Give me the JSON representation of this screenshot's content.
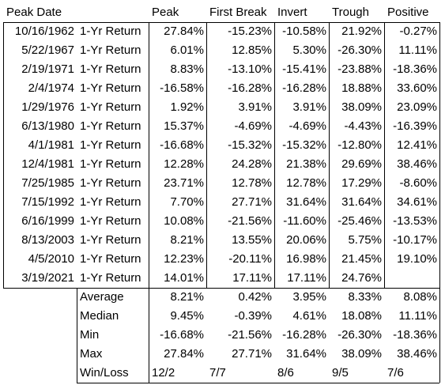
{
  "header": {
    "peak_date": "Peak Date",
    "peak": "Peak",
    "first_break": "First Break",
    "invert": "Invert",
    "trough": "Trough",
    "positive": "Positive"
  },
  "rows": [
    {
      "date": "10/16/1962",
      "label": "1-Yr Return",
      "peak": "27.84%",
      "first_break": "-15.23%",
      "invert": "-10.58%",
      "trough": "21.92%",
      "positive": "-0.27%"
    },
    {
      "date": "5/22/1967",
      "label": "1-Yr Return",
      "peak": "6.01%",
      "first_break": "12.85%",
      "invert": "5.30%",
      "trough": "-26.30%",
      "positive": "11.11%"
    },
    {
      "date": "2/19/1971",
      "label": "1-Yr Return",
      "peak": "8.83%",
      "first_break": "-13.10%",
      "invert": "-15.41%",
      "trough": "-23.88%",
      "positive": "-18.36%"
    },
    {
      "date": "2/4/1974",
      "label": "1-Yr Return",
      "peak": "-16.58%",
      "first_break": "-16.28%",
      "invert": "-16.28%",
      "trough": "18.88%",
      "positive": "33.60%"
    },
    {
      "date": "1/29/1976",
      "label": "1-Yr Return",
      "peak": "1.92%",
      "first_break": "3.91%",
      "invert": "3.91%",
      "trough": "38.09%",
      "positive": "23.09%"
    },
    {
      "date": "6/13/1980",
      "label": "1-Yr Return",
      "peak": "15.37%",
      "first_break": "-4.69%",
      "invert": "-4.69%",
      "trough": "-4.43%",
      "positive": "-16.39%"
    },
    {
      "date": "4/1/1981",
      "label": "1-Yr Return",
      "peak": "-16.68%",
      "first_break": "-15.32%",
      "invert": "-15.32%",
      "trough": "-12.80%",
      "positive": "12.41%"
    },
    {
      "date": "12/4/1981",
      "label": "1-Yr Return",
      "peak": "12.28%",
      "first_break": "24.28%",
      "invert": "21.38%",
      "trough": "29.69%",
      "positive": "38.46%"
    },
    {
      "date": "7/25/1985",
      "label": "1-Yr Return",
      "peak": "23.71%",
      "first_break": "12.78%",
      "invert": "12.78%",
      "trough": "17.29%",
      "positive": "-8.60%"
    },
    {
      "date": "7/15/1992",
      "label": "1-Yr Return",
      "peak": "7.70%",
      "first_break": "27.71%",
      "invert": "31.64%",
      "trough": "31.64%",
      "positive": "34.61%"
    },
    {
      "date": "6/16/1999",
      "label": "1-Yr Return",
      "peak": "10.08%",
      "first_break": "-21.56%",
      "invert": "-11.60%",
      "trough": "-25.46%",
      "positive": "-13.53%"
    },
    {
      "date": "8/13/2003",
      "label": "1-Yr Return",
      "peak": "8.21%",
      "first_break": "13.55%",
      "invert": "20.06%",
      "trough": "5.75%",
      "positive": "-10.17%"
    },
    {
      "date": "4/5/2010",
      "label": "1-Yr Return",
      "peak": "12.23%",
      "first_break": "-20.11%",
      "invert": "16.98%",
      "trough": "21.45%",
      "positive": "19.10%"
    },
    {
      "date": "3/19/2021",
      "label": "1-Yr Return",
      "peak": "14.01%",
      "first_break": "17.11%",
      "invert": "17.11%",
      "trough": "24.76%",
      "positive": ""
    }
  ],
  "summary": [
    {
      "label": "Average",
      "peak": "8.21%",
      "first_break": "0.42%",
      "invert": "3.95%",
      "trough": "8.33%",
      "positive": "8.08%"
    },
    {
      "label": "Median",
      "peak": "9.45%",
      "first_break": "-0.39%",
      "invert": "4.61%",
      "trough": "18.08%",
      "positive": "11.11%"
    },
    {
      "label": "Min",
      "peak": "-16.68%",
      "first_break": "-21.56%",
      "invert": "-16.28%",
      "trough": "-26.30%",
      "positive": "-18.36%"
    },
    {
      "label": "Max",
      "peak": "27.84%",
      "first_break": "27.71%",
      "invert": "31.64%",
      "trough": "38.09%",
      "positive": "38.46%"
    },
    {
      "label": "Win/Loss",
      "peak": "12/2",
      "first_break": "7/7",
      "invert": "8/6",
      "trough": "9/5",
      "positive": "7/6"
    }
  ]
}
